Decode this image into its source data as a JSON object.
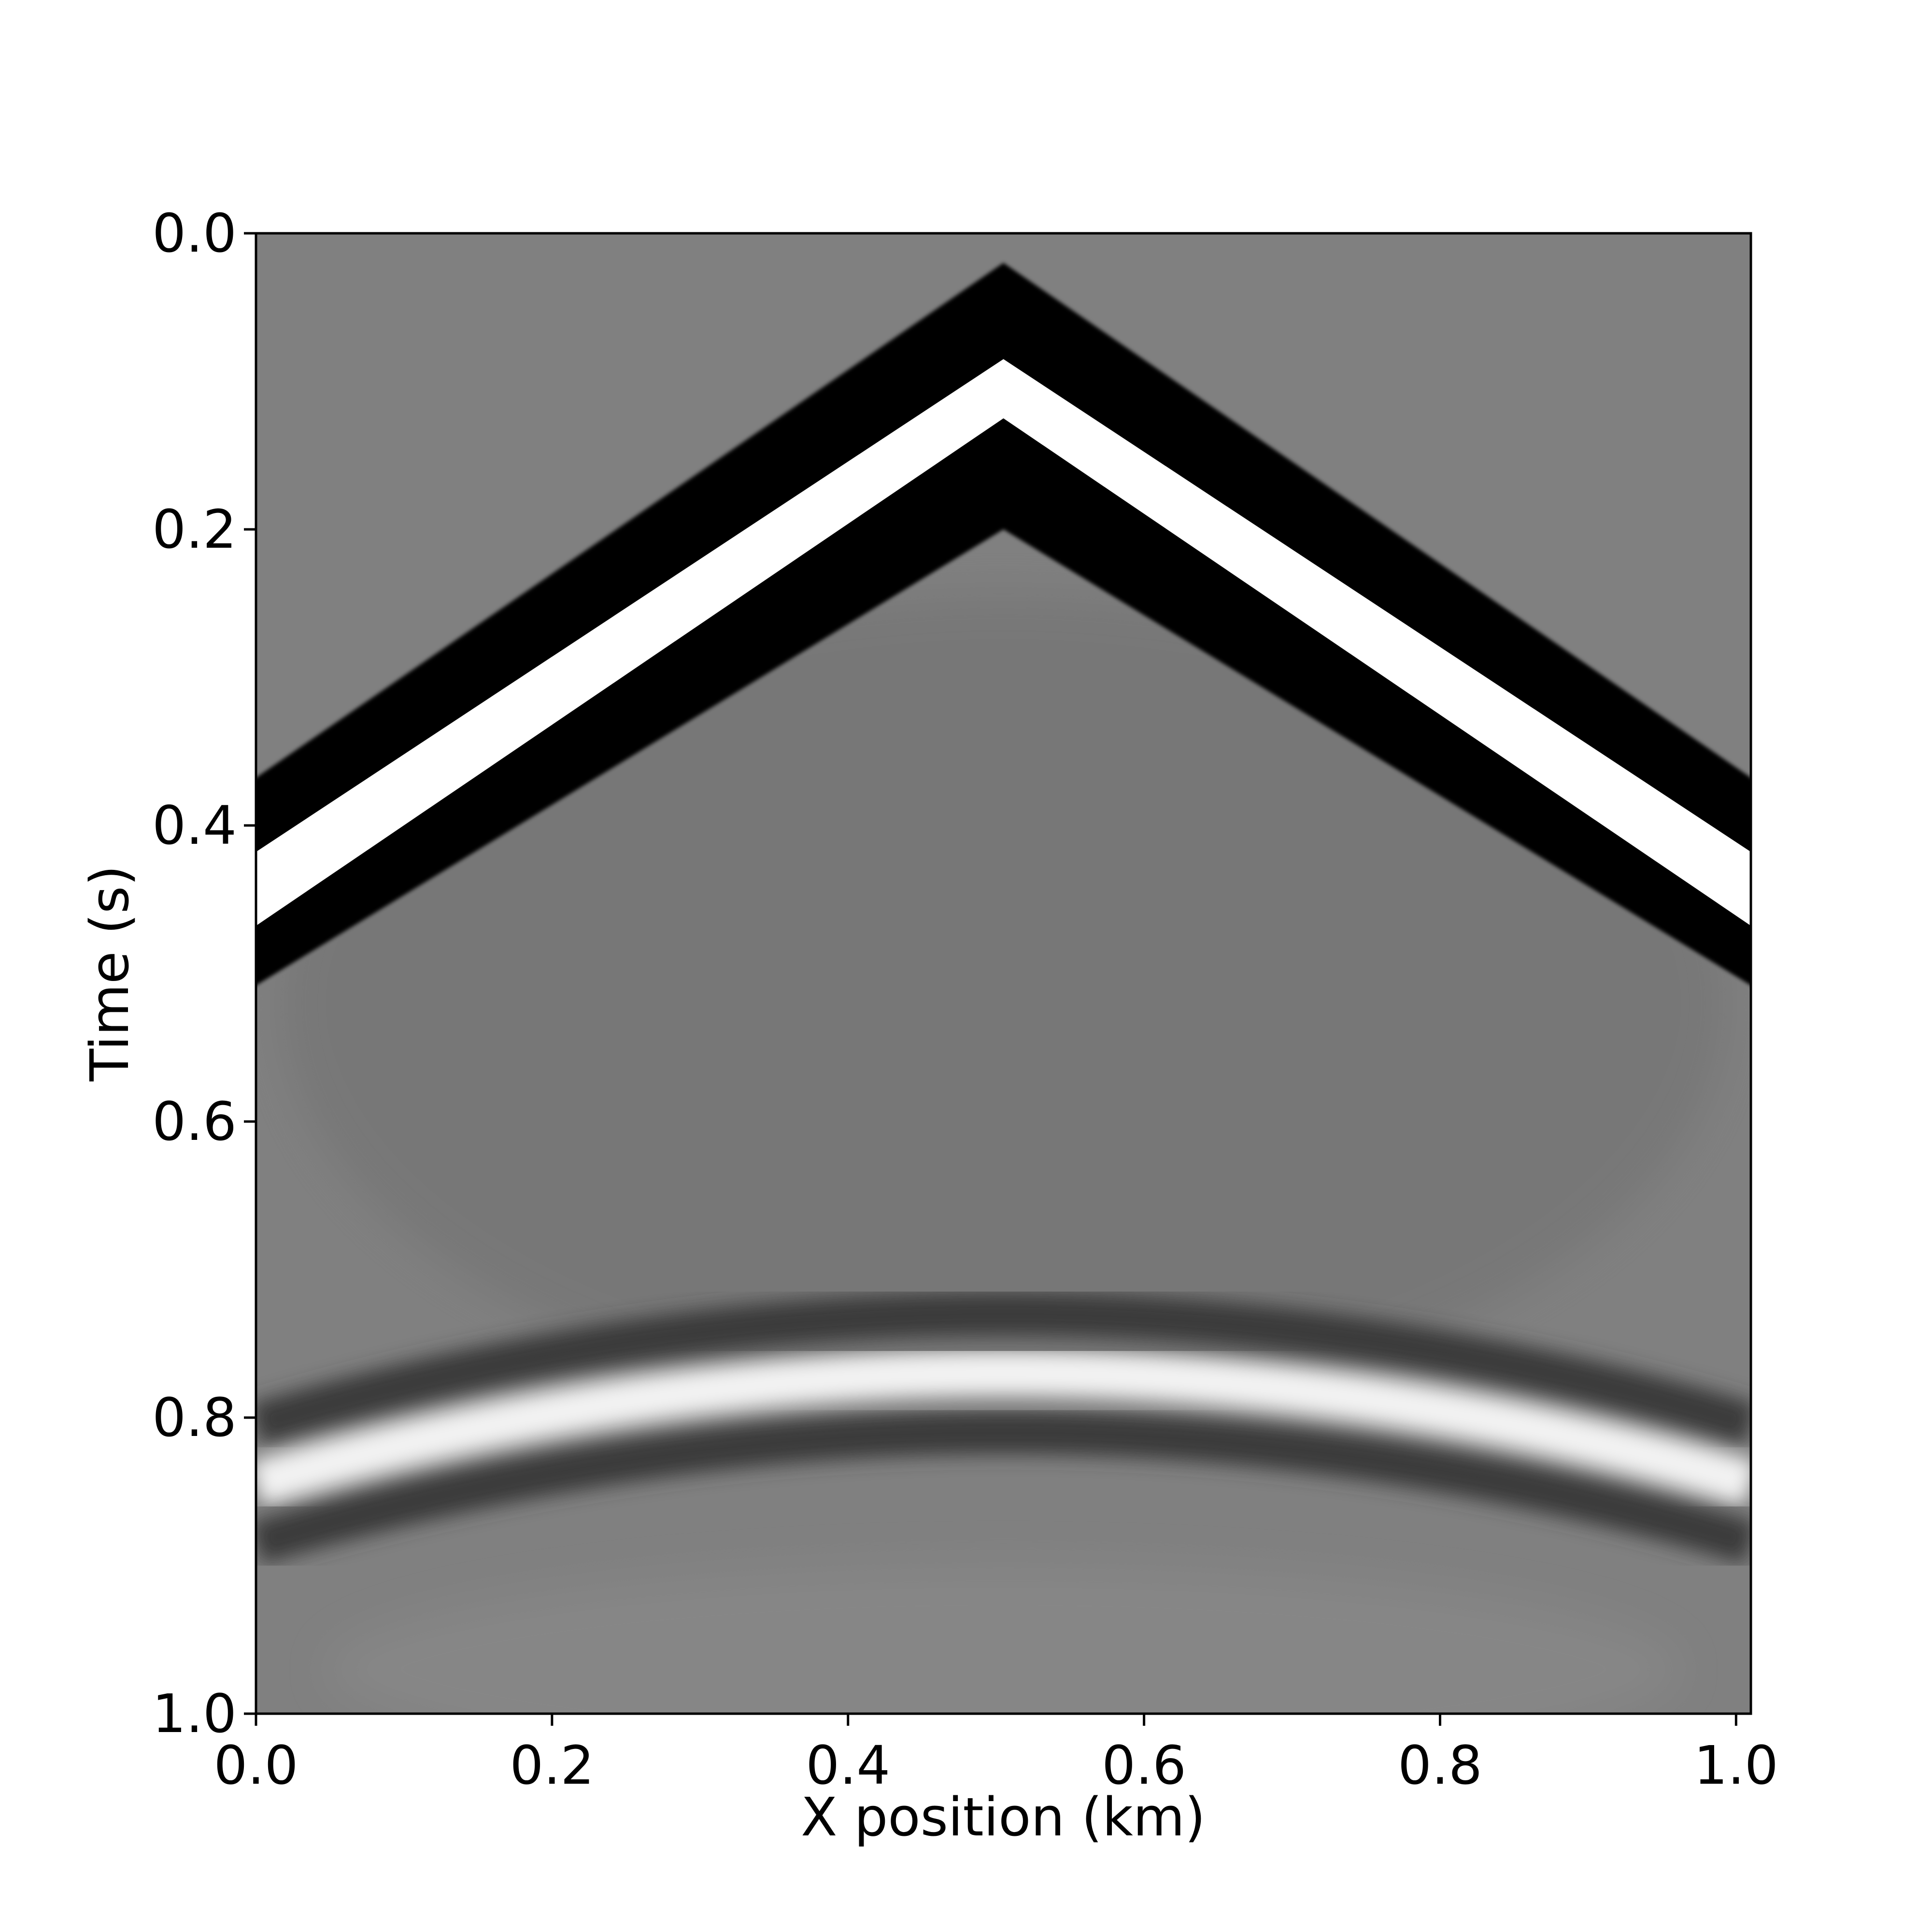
{
  "chart_data": {
    "type": "heatmap",
    "title": "",
    "xlabel": "X position (km)",
    "ylabel": "Time (s)",
    "xlim": [
      0.0,
      1.01
    ],
    "ylim": [
      1.0,
      0.0
    ],
    "y_inverted": true,
    "colormap": "grayscale",
    "grid": false,
    "x_ticks": [
      "0.0",
      "0.2",
      "0.4",
      "0.6",
      "0.8",
      "1.0"
    ],
    "x_tick_values": [
      0.0,
      0.2,
      0.4,
      0.6,
      0.8,
      1.0
    ],
    "y_ticks": [
      "0.0",
      "0.2",
      "0.4",
      "0.6",
      "0.8",
      "1.0"
    ],
    "y_tick_values": [
      0.0,
      0.2,
      0.4,
      0.6,
      0.8,
      1.0
    ],
    "events": [
      {
        "name": "direct-wave",
        "shape": "linear-moveout",
        "apex_x_km": 0.505,
        "black_top_apex_t": 0.02,
        "white_apex_t": 0.085,
        "black_bottom_apex_t": 0.13,
        "edge_t_white_top": 0.42,
        "edge_t_white_bottom": 0.47,
        "edge_t_black_top": 0.37,
        "edge_t_black_bottom": 0.51
      },
      {
        "name": "reflection",
        "shape": "hyperbolic-moveout",
        "apex_x_km": 0.505,
        "white_apex_t": 0.77,
        "white_edge_t": 0.845,
        "dark_above_apex_t": 0.73,
        "dark_below_apex_t": 0.81
      }
    ]
  }
}
